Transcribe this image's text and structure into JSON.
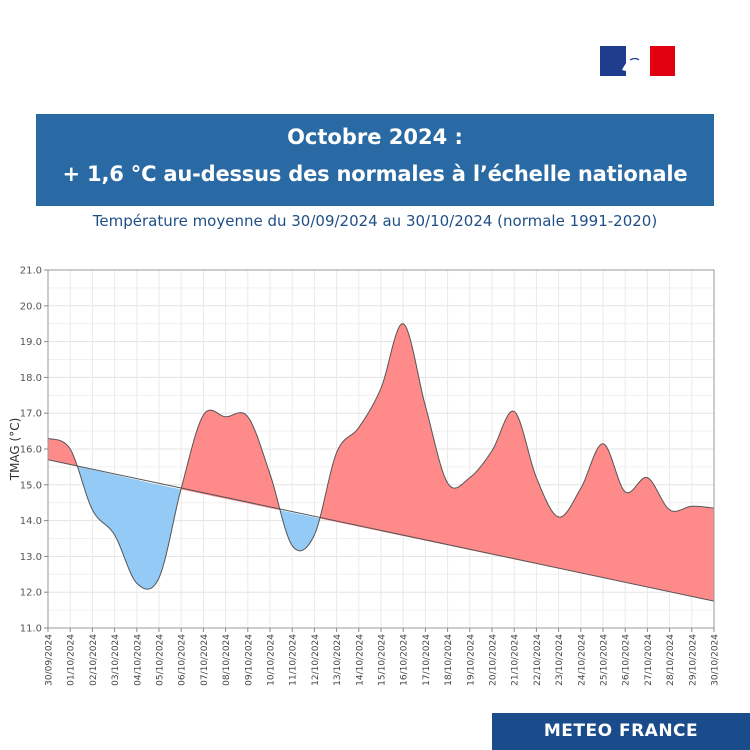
{
  "header": {
    "title_line1": "Octobre 2024 :",
    "title_line2": "+ 1,6 °C au-dessus des normales à l’échelle nationale",
    "subtitle": "Température moyenne du 30/09/2024 au 30/10/2024 (normale 1991-2020)"
  },
  "footer": {
    "brand": "METEO FRANCE"
  },
  "colors": {
    "banner": "#2a6aa4",
    "above_normal": "#ff8a8a",
    "below_normal": "#94caf6",
    "logo_bg": "#1a4b8a"
  },
  "chart_data": {
    "type": "area",
    "xlabel": "",
    "ylabel": "TMAG (°C)",
    "ylim": [
      11.0,
      21.0
    ],
    "y_ticks": [
      "11.0",
      "12.0",
      "13.0",
      "14.0",
      "15.0",
      "16.0",
      "17.0",
      "18.0",
      "19.0",
      "20.0",
      "21.0"
    ],
    "grid": true,
    "x": [
      "30/09/2024",
      "01/10/2024",
      "02/10/2024",
      "03/10/2024",
      "04/10/2024",
      "05/10/2024",
      "06/10/2024",
      "07/10/2024",
      "08/10/2024",
      "09/10/2024",
      "10/10/2024",
      "11/10/2024",
      "12/10/2024",
      "13/10/2024",
      "14/10/2024",
      "15/10/2024",
      "16/10/2024",
      "17/10/2024",
      "18/10/2024",
      "19/10/2024",
      "20/10/2024",
      "21/10/2024",
      "22/10/2024",
      "23/10/2024",
      "24/10/2024",
      "25/10/2024",
      "26/10/2024",
      "27/10/2024",
      "28/10/2024",
      "29/10/2024",
      "30/10/2024"
    ],
    "series": [
      {
        "values": [
          16.3,
          16.0,
          14.3,
          13.6,
          12.25,
          12.4,
          14.9,
          16.95,
          16.9,
          16.9,
          15.3,
          13.3,
          13.6,
          15.9,
          16.6,
          17.7,
          19.5,
          17.2,
          15.05,
          15.2,
          15.95,
          17.05,
          15.2,
          14.1,
          14.9,
          16.15,
          14.8,
          15.2,
          14.3,
          14.4,
          14.35
        ]
      },
      {
        "values": [
          15.7,
          15.56,
          15.42,
          15.28,
          15.14,
          15.0,
          14.87,
          14.74,
          14.61,
          14.48,
          14.35,
          14.22,
          14.09,
          13.96,
          13.83,
          13.7,
          13.57,
          13.44,
          13.31,
          13.18,
          13.05,
          12.92,
          12.79,
          12.66,
          12.53,
          12.4,
          12.27,
          12.14,
          12.01,
          11.88,
          11.75
        ]
      }
    ]
  }
}
